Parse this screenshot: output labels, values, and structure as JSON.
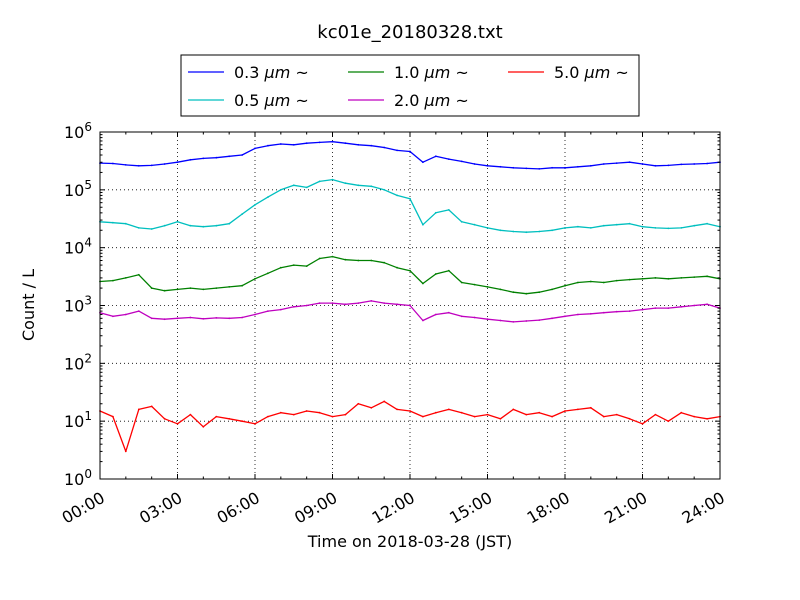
{
  "chart_data": {
    "type": "line",
    "title": "kc01e_20180328.txt",
    "xlabel": "Time on 2018-03-28 (JST)",
    "ylabel": "Count / L",
    "xlim": [
      "00:00",
      "24:00"
    ],
    "x_tick_labels": [
      "00:00",
      "03:00",
      "06:00",
      "09:00",
      "12:00",
      "15:00",
      "18:00",
      "21:00",
      "24:00"
    ],
    "y_scale": "log",
    "ylim": [
      1,
      1000000
    ],
    "y_tick_labels": [
      {
        "base": "10",
        "exp": "0"
      },
      {
        "base": "10",
        "exp": "1"
      },
      {
        "base": "10",
        "exp": "2"
      },
      {
        "base": "10",
        "exp": "3"
      },
      {
        "base": "10",
        "exp": "4"
      },
      {
        "base": "10",
        "exp": "5"
      },
      {
        "base": "10",
        "exp": "6"
      }
    ],
    "grid": true,
    "legend_position": "top-center",
    "x_hours": [
      0,
      0.5,
      1,
      1.5,
      2,
      2.5,
      3,
      3.5,
      4,
      4.5,
      5,
      5.5,
      6,
      6.5,
      7,
      7.5,
      8,
      8.5,
      9,
      9.5,
      10,
      10.5,
      11,
      11.5,
      12,
      12.5,
      13,
      13.5,
      14,
      14.5,
      15,
      15.5,
      16,
      16.5,
      17,
      17.5,
      18,
      18.5,
      19,
      19.5,
      20,
      20.5,
      21,
      21.5,
      22,
      22.5,
      23,
      23.5,
      24
    ],
    "series": [
      {
        "name_prefix": "0.3 ",
        "name_unit": "μm",
        "name_suffix": " ~",
        "color": "#0000ff",
        "values": [
          290000,
          285000,
          270000,
          260000,
          265000,
          280000,
          300000,
          330000,
          350000,
          360000,
          380000,
          400000,
          520000,
          580000,
          620000,
          600000,
          640000,
          660000,
          680000,
          640000,
          600000,
          580000,
          540000,
          480000,
          460000,
          300000,
          380000,
          340000,
          310000,
          280000,
          260000,
          250000,
          240000,
          235000,
          230000,
          240000,
          240000,
          250000,
          260000,
          280000,
          290000,
          300000,
          280000,
          260000,
          265000,
          275000,
          280000,
          285000,
          300000
        ]
      },
      {
        "name_prefix": "0.5 ",
        "name_unit": "μm",
        "name_suffix": " ~",
        "color": "#00bfbf",
        "values": [
          28000,
          27000,
          26000,
          22000,
          21000,
          24000,
          28000,
          24000,
          23000,
          24000,
          26000,
          38000,
          55000,
          75000,
          100000,
          120000,
          110000,
          140000,
          150000,
          130000,
          120000,
          115000,
          100000,
          80000,
          70000,
          25000,
          40000,
          45000,
          28000,
          25000,
          22000,
          20000,
          19000,
          18500,
          19000,
          20000,
          22000,
          23000,
          22000,
          24000,
          25000,
          26000,
          23000,
          22000,
          21500,
          22000,
          24000,
          26000,
          23000
        ]
      },
      {
        "name_prefix": "1.0 ",
        "name_unit": "μm",
        "name_suffix": " ~",
        "color": "#008000",
        "values": [
          2600,
          2700,
          3000,
          3400,
          2000,
          1800,
          1900,
          2000,
          1900,
          2000,
          2100,
          2200,
          2900,
          3600,
          4500,
          5000,
          4800,
          6500,
          7000,
          6200,
          6000,
          6000,
          5500,
          4500,
          4000,
          2400,
          3500,
          4000,
          2500,
          2300,
          2100,
          1900,
          1700,
          1600,
          1700,
          1900,
          2200,
          2500,
          2600,
          2500,
          2700,
          2800,
          2900,
          3000,
          2900,
          3000,
          3100,
          3200,
          2900
        ]
      },
      {
        "name_prefix": "2.0 ",
        "name_unit": "μm",
        "name_suffix": " ~",
        "color": "#bf00bf",
        "values": [
          750,
          650,
          700,
          800,
          600,
          580,
          600,
          620,
          590,
          610,
          600,
          620,
          700,
          800,
          850,
          950,
          1000,
          1100,
          1100,
          1050,
          1100,
          1200,
          1100,
          1050,
          1000,
          550,
          700,
          750,
          650,
          620,
          580,
          550,
          520,
          540,
          560,
          600,
          650,
          700,
          720,
          750,
          780,
          800,
          850,
          900,
          900,
          950,
          1000,
          1050,
          900
        ]
      },
      {
        "name_prefix": "5.0 ",
        "name_unit": "μm",
        "name_suffix": " ~",
        "color": "#ff0000",
        "values": [
          15,
          12,
          3,
          16,
          18,
          11,
          9,
          13,
          8,
          12,
          11,
          10,
          9,
          12,
          14,
          13,
          15,
          14,
          12,
          13,
          20,
          17,
          22,
          16,
          15,
          12,
          14,
          16,
          14,
          12,
          13,
          11,
          16,
          13,
          14,
          12,
          15,
          16,
          17,
          12,
          13,
          11,
          9,
          13,
          10,
          14,
          12,
          11,
          12
        ]
      }
    ]
  }
}
